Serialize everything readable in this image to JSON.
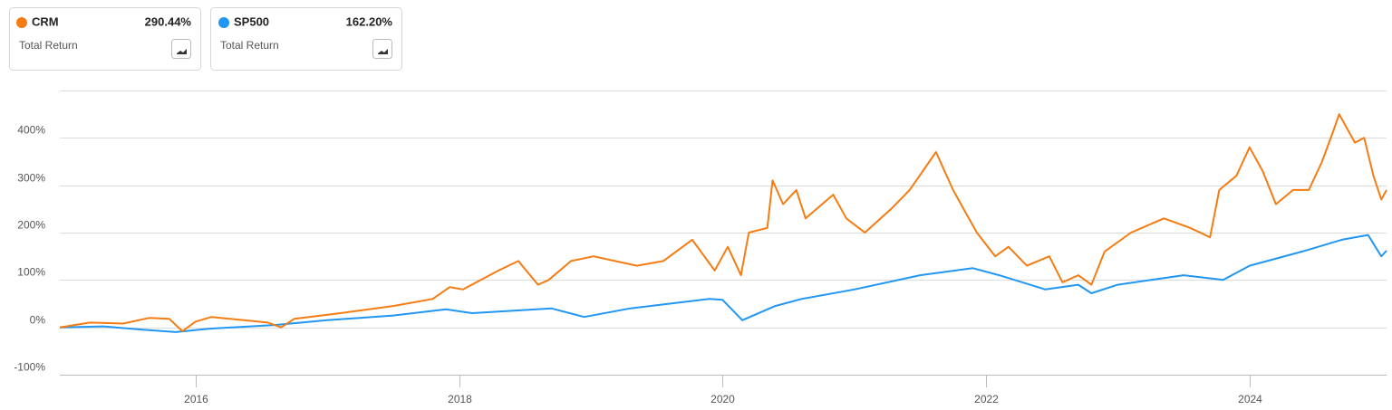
{
  "chart_data": {
    "type": "line",
    "xlim": [
      2014.97,
      2025.04
    ],
    "xticks": [
      2016,
      2018,
      2020,
      2022,
      2024
    ],
    "ylim": [
      -100,
      500
    ],
    "yticks": [
      {
        "value": -100,
        "label": "-100%"
      },
      {
        "value": 0,
        "label": "0%"
      },
      {
        "value": 100,
        "label": "100%"
      },
      {
        "value": 200,
        "label": "200%"
      },
      {
        "value": 300,
        "label": "300%"
      },
      {
        "value": 400,
        "label": "400%"
      }
    ],
    "grid": true,
    "series": [
      {
        "name": "CRM",
        "color": "#f57c12",
        "summary": {
          "value": 290.44,
          "label": "290.44%",
          "caption": "Total Return"
        },
        "x": [
          2014.97,
          2015.2,
          2015.45,
          2015.65,
          2015.8,
          2015.9,
          2016.0,
          2016.12,
          2016.55,
          2016.65,
          2016.75,
          2017.1,
          2017.5,
          2017.8,
          2017.93,
          2018.03,
          2018.3,
          2018.45,
          2018.6,
          2018.68,
          2018.85,
          2019.02,
          2019.35,
          2019.55,
          2019.77,
          2019.94,
          2020.04,
          2020.14,
          2020.2,
          2020.34,
          2020.38,
          2020.46,
          2020.56,
          2020.63,
          2020.84,
          2020.94,
          2021.08,
          2021.28,
          2021.42,
          2021.52,
          2021.62,
          2021.75,
          2021.85,
          2021.93,
          2022.07,
          2022.17,
          2022.31,
          2022.48,
          2022.58,
          2022.7,
          2022.8,
          2022.9,
          2023.1,
          2023.35,
          2023.55,
          2023.7,
          2023.77,
          2023.9,
          2024.0,
          2024.1,
          2024.2,
          2024.33,
          2024.45,
          2024.55,
          2024.63,
          2024.68,
          2024.8,
          2024.87,
          2024.94,
          2025.0,
          2025.04
        ],
        "values": [
          0,
          10,
          8,
          20,
          18,
          -8,
          12,
          22,
          10,
          0,
          18,
          30,
          45,
          60,
          85,
          80,
          120,
          140,
          90,
          100,
          140,
          150,
          130,
          140,
          185,
          120,
          170,
          110,
          200,
          210,
          310,
          260,
          290,
          230,
          280,
          230,
          200,
          250,
          290,
          330,
          370,
          290,
          240,
          200,
          150,
          170,
          130,
          150,
          95,
          110,
          90,
          160,
          200,
          230,
          210,
          190,
          290,
          320,
          380,
          330,
          260,
          290,
          290,
          350,
          410,
          450,
          390,
          400,
          320,
          270,
          290
        ]
      },
      {
        "name": "SP500",
        "color": "#2196f3",
        "summary": {
          "value": 162.2,
          "label": "162.20%",
          "caption": "Total Return"
        },
        "x": [
          2014.97,
          2015.3,
          2015.6,
          2015.85,
          2016.1,
          2016.6,
          2017.0,
          2017.5,
          2017.9,
          2018.1,
          2018.7,
          2018.95,
          2019.3,
          2019.6,
          2019.9,
          2020.0,
          2020.15,
          2020.4,
          2020.6,
          2021.0,
          2021.5,
          2021.9,
          2022.1,
          2022.45,
          2022.7,
          2022.8,
          2023.0,
          2023.5,
          2023.8,
          2024.0,
          2024.4,
          2024.7,
          2024.9,
          2025.0,
          2025.04
        ],
        "values": [
          0,
          2,
          -5,
          -10,
          -3,
          5,
          15,
          25,
          38,
          30,
          40,
          22,
          40,
          50,
          60,
          58,
          15,
          45,
          60,
          80,
          110,
          125,
          110,
          80,
          90,
          72,
          90,
          110,
          100,
          130,
          160,
          185,
          195,
          150,
          162
        ]
      }
    ]
  }
}
